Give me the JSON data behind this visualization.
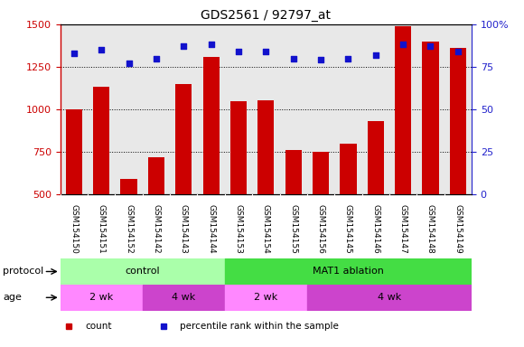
{
  "title": "GDS2561 / 92797_at",
  "samples": [
    "GSM154150",
    "GSM154151",
    "GSM154152",
    "GSM154142",
    "GSM154143",
    "GSM154144",
    "GSM154153",
    "GSM154154",
    "GSM154155",
    "GSM154156",
    "GSM154145",
    "GSM154146",
    "GSM154147",
    "GSM154148",
    "GSM154149"
  ],
  "counts": [
    1000,
    1130,
    590,
    720,
    1150,
    1310,
    1050,
    1055,
    760,
    750,
    800,
    930,
    1490,
    1400,
    1360
  ],
  "percentiles_raw": [
    83,
    85,
    77,
    80,
    87,
    88,
    84,
    84,
    80,
    79,
    80,
    82,
    88,
    87,
    84
  ],
  "bar_color": "#cc0000",
  "dot_color": "#1111cc",
  "ylim_left": [
    500,
    1500
  ],
  "ylim_right": [
    0,
    100
  ],
  "yticks_left": [
    500,
    750,
    1000,
    1250,
    1500
  ],
  "yticks_right": [
    0,
    25,
    50,
    75,
    100
  ],
  "bar_width": 0.6,
  "protocol_groups": [
    {
      "label": "control",
      "start": 0,
      "end": 6,
      "color": "#aaffaa"
    },
    {
      "label": "MAT1 ablation",
      "start": 6,
      "end": 15,
      "color": "#44dd44"
    }
  ],
  "age_groups": [
    {
      "label": "2 wk",
      "start": 0,
      "end": 3,
      "color": "#ff88ff"
    },
    {
      "label": "4 wk",
      "start": 3,
      "end": 6,
      "color": "#cc44cc"
    },
    {
      "label": "2 wk",
      "start": 6,
      "end": 9,
      "color": "#ff88ff"
    },
    {
      "label": "4 wk",
      "start": 9,
      "end": 15,
      "color": "#cc44cc"
    }
  ],
  "axis_left_color": "#cc0000",
  "axis_right_color": "#2222cc",
  "bg_color": "#e8e8e8",
  "legend_items": [
    {
      "label": "count",
      "color": "#cc0000"
    },
    {
      "label": "percentile rank within the sample",
      "color": "#1111cc"
    }
  ],
  "label_row_color": "#cccccc",
  "protocol_label": "protocol",
  "age_label": "age"
}
